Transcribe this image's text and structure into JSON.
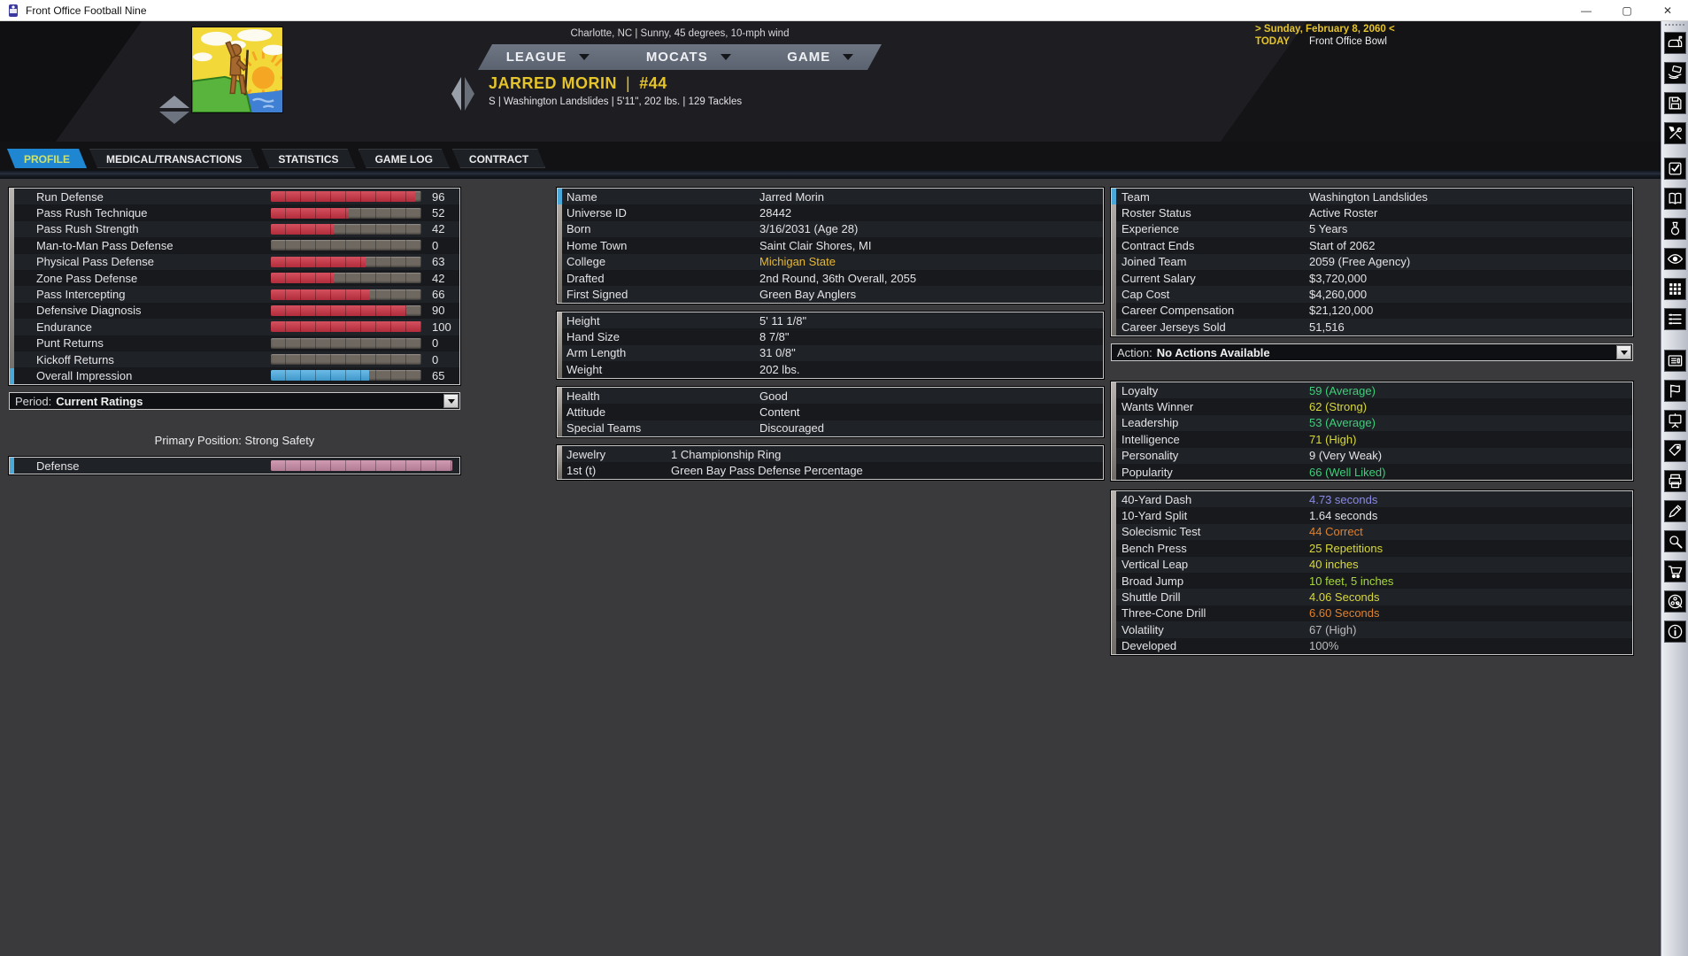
{
  "window": {
    "title": "Front Office Football Nine",
    "controls": {
      "minimize": "—",
      "maximize": "▢",
      "close": "✕"
    }
  },
  "header": {
    "weather": "Charlotte, NC | Sunny, 45 degrees, 10-mph wind",
    "nav": [
      {
        "label": "LEAGUE"
      },
      {
        "label": "MOCATS"
      },
      {
        "label": "GAME"
      }
    ],
    "player": {
      "name": "JARRED MORIN",
      "separator": "|",
      "number": "#44",
      "details": "S  |  Washington Landslides  |  5'11\", 202 lbs.  |  129 Tackles"
    },
    "date": {
      "line": "> Sunday, February 8, 2060 <",
      "today_label": "TODAY",
      "event": "Front Office Bowl"
    }
  },
  "tabs": [
    {
      "label": "PROFILE",
      "active": true
    },
    {
      "label": "MEDICAL/TRANSACTIONS",
      "active": false
    },
    {
      "label": "STATISTICS",
      "active": false
    },
    {
      "label": "GAME LOG",
      "active": false
    },
    {
      "label": "CONTRACT",
      "active": false
    }
  ],
  "ratings": {
    "rows": [
      {
        "label": "Run Defense",
        "value": 96,
        "color": "red"
      },
      {
        "label": "Pass Rush Technique",
        "value": 52,
        "color": "red"
      },
      {
        "label": "Pass Rush Strength",
        "value": 42,
        "color": "red"
      },
      {
        "label": "Man-to-Man Pass Defense",
        "value": 0,
        "color": "red"
      },
      {
        "label": "Physical Pass Defense",
        "value": 63,
        "color": "red"
      },
      {
        "label": "Zone Pass Defense",
        "value": 42,
        "color": "red"
      },
      {
        "label": "Pass Intercepting",
        "value": 66,
        "color": "red"
      },
      {
        "label": "Defensive Diagnosis",
        "value": 90,
        "color": "red"
      },
      {
        "label": "Endurance",
        "value": 100,
        "color": "red"
      },
      {
        "label": "Punt Returns",
        "value": 0,
        "color": "red"
      },
      {
        "label": "Kickoff Returns",
        "value": 0,
        "color": "red"
      },
      {
        "label": "Overall Impression",
        "value": 65,
        "color": "blue"
      }
    ]
  },
  "period": {
    "label": "Period:",
    "value": "Current Ratings"
  },
  "primary_position": "Primary Position: Strong Safety",
  "position_group": {
    "label": "Defense",
    "value": 100,
    "color": "pink"
  },
  "bio": [
    {
      "label": "Name",
      "value": "Jarred Morin",
      "color": "white"
    },
    {
      "label": "Universe ID",
      "value": "28442",
      "color": "white"
    },
    {
      "label": "Born",
      "value": "3/16/2031 (Age 28)",
      "color": "white"
    },
    {
      "label": "Home Town",
      "value": "Saint Clair Shores, MI",
      "color": "white"
    },
    {
      "label": "College",
      "value": "Michigan State",
      "color": "gold"
    },
    {
      "label": "Drafted",
      "value": "2nd Round, 36th Overall, 2055",
      "color": "white"
    },
    {
      "label": "First Signed",
      "value": "Green Bay Anglers",
      "color": "white"
    }
  ],
  "measurements": [
    {
      "label": "Height",
      "value": "5' 11 1/8\"",
      "color": "white"
    },
    {
      "label": "Hand Size",
      "value": "8 7/8\"",
      "color": "white"
    },
    {
      "label": "Arm Length",
      "value": "31 0/8\"",
      "color": "white"
    },
    {
      "label": "Weight",
      "value": "202 lbs.",
      "color": "white"
    }
  ],
  "status": [
    {
      "label": "Health",
      "value": "Good",
      "color": "white"
    },
    {
      "label": "Attitude",
      "value": "Content",
      "color": "white"
    },
    {
      "label": "Special Teams",
      "value": "Discouraged",
      "color": "white"
    }
  ],
  "awards": [
    {
      "label": "Jewelry",
      "value": "1 Championship Ring",
      "color": "white"
    },
    {
      "label": "1st (t)",
      "value": "Green Bay Pass Defense Percentage",
      "color": "white"
    }
  ],
  "team_info": [
    {
      "label": "Team",
      "value": "Washington Landslides",
      "color": "white"
    },
    {
      "label": "Roster Status",
      "value": "Active Roster",
      "color": "white"
    },
    {
      "label": "Experience",
      "value": "5 Years",
      "color": "white"
    },
    {
      "label": "Contract Ends",
      "value": "Start of 2062",
      "color": "white"
    },
    {
      "label": "Joined Team",
      "value": "2059 (Free Agency)",
      "color": "white"
    },
    {
      "label": "Current Salary",
      "value": "$3,720,000",
      "color": "white"
    },
    {
      "label": "Cap Cost",
      "value": "$4,260,000",
      "color": "white"
    },
    {
      "label": "Career Compensation",
      "value": "$21,120,000",
      "color": "white"
    },
    {
      "label": "Career Jerseys Sold",
      "value": "51,516",
      "color": "white"
    }
  ],
  "action": {
    "label": "Action:",
    "value": "No Actions Available"
  },
  "personality": [
    {
      "label": "Loyalty",
      "value": "59 (Average)",
      "color": "green"
    },
    {
      "label": "Wants Winner",
      "value": "62 (Strong)",
      "color": "yellow"
    },
    {
      "label": "Leadership",
      "value": "53 (Average)",
      "color": "green"
    },
    {
      "label": "Intelligence",
      "value": "71 (High)",
      "color": "yellow"
    },
    {
      "label": "Personality",
      "value": "9 (Very Weak)",
      "color": "white"
    },
    {
      "label": "Popularity",
      "value": "66 (Well Liked)",
      "color": "green"
    }
  ],
  "combine": [
    {
      "label": "40-Yard Dash",
      "value": "4.73 seconds",
      "color": "slate"
    },
    {
      "label": "10-Yard Split",
      "value": "1.64 seconds",
      "color": "white"
    },
    {
      "label": "Solecismic Test",
      "value": "44 Correct",
      "color": "orange"
    },
    {
      "label": "Bench Press",
      "value": "25 Repetitions",
      "color": "yellow"
    },
    {
      "label": "Vertical Leap",
      "value": "40 inches",
      "color": "yellow"
    },
    {
      "label": "Broad Jump",
      "value": "10 feet, 5 inches",
      "color": "lime"
    },
    {
      "label": "Shuttle Drill",
      "value": "4.06 Seconds",
      "color": "yellow"
    },
    {
      "label": "Three-Cone Drill",
      "value": "6.60 Seconds",
      "color": "orange"
    },
    {
      "label": "Volatility",
      "value": "67 (High)",
      "color": "gray"
    },
    {
      "label": "Developed",
      "value": "100%",
      "color": "gray"
    }
  ],
  "sidebar": {
    "icons": [
      "mailbox",
      "hand-card",
      "save",
      "tools",
      "checklist",
      "book",
      "medal",
      "eye",
      "grid",
      "list",
      "newspaper",
      "flag",
      "presentation",
      "price-tag",
      "printer",
      "pencil",
      "search",
      "cart",
      "reel",
      "info"
    ]
  },
  "colors": {
    "accent_yellow": "#e5c32a",
    "tab_active_bg": "#1f86d2",
    "tab_active_text": "#cde26d",
    "bar_red": "#c63a4a",
    "bar_blue": "#55acdc",
    "bar_pink": "#c08da8"
  }
}
